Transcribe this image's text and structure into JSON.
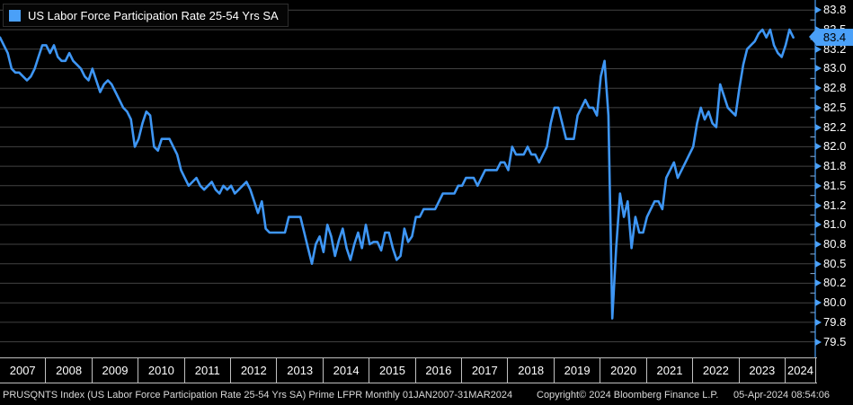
{
  "app": {
    "name": "Bloomberg terminal chart"
  },
  "legend": {
    "label": "US Labor Force Participation Rate 25-54 Yrs SA"
  },
  "footer": {
    "security_text": "PRUSQNTS Index (US Labor Force Participation Rate 25-54 Yrs SA) Prime LFPR  Monthly 01JAN2007-31MAR2024",
    "copyright_text": "Copyright© 2024 Bloomberg Finance L.P.",
    "timestamp_text": "05-Apr-2024 08:54:06"
  },
  "colors": {
    "background": "#000000",
    "accent_blue": "#4aa0f8",
    "line_blue": "#3e96f4",
    "grid": "#424242",
    "minor_tick": "#8fb3d9",
    "axis_white": "#c0c0c0",
    "text_white": "#ffffff",
    "footer_text": "#d9d9d9"
  },
  "chart_data": {
    "type": "line",
    "title": "US Labor Force Participation Rate 25-54 Yrs SA",
    "frequency": "Monthly",
    "x_start": "2007-01",
    "x_end": "2024-03",
    "ylim": [
      79.3,
      83.88
    ],
    "grid": true,
    "legend_position": "top-left",
    "y_ticks": [
      {
        "value": 83.75,
        "label": "83.8"
      },
      {
        "value": 83.5,
        "label": "83.5"
      },
      {
        "value": 83.25,
        "label": "83.2"
      },
      {
        "value": 83.0,
        "label": "83.0"
      },
      {
        "value": 82.75,
        "label": "82.8"
      },
      {
        "value": 82.5,
        "label": "82.5"
      },
      {
        "value": 82.25,
        "label": "82.2"
      },
      {
        "value": 82.0,
        "label": "82.0"
      },
      {
        "value": 81.75,
        "label": "81.8"
      },
      {
        "value": 81.5,
        "label": "81.5"
      },
      {
        "value": 81.25,
        "label": "81.2"
      },
      {
        "value": 81.0,
        "label": "81.0"
      },
      {
        "value": 80.75,
        "label": "80.8"
      },
      {
        "value": 80.5,
        "label": "80.5"
      },
      {
        "value": 80.25,
        "label": "80.2"
      },
      {
        "value": 80.0,
        "label": "80.0"
      },
      {
        "value": 79.75,
        "label": "79.8"
      },
      {
        "value": 79.5,
        "label": "79.5"
      }
    ],
    "years": [
      "2007",
      "2008",
      "2009",
      "2010",
      "2011",
      "2012",
      "2013",
      "2014",
      "2015",
      "2016",
      "2017",
      "2018",
      "2019",
      "2020",
      "2021",
      "2022",
      "2023",
      "2024"
    ],
    "last_value": 83.4,
    "last_value_label": "83.4",
    "series": [
      {
        "name": "US Labor Force Participation Rate 25-54 Yrs SA",
        "values": [
          83.4,
          83.3,
          83.2,
          83.0,
          82.95,
          82.95,
          82.9,
          82.85,
          82.9,
          83.0,
          83.15,
          83.3,
          83.3,
          83.2,
          83.3,
          83.15,
          83.1,
          83.1,
          83.2,
          83.1,
          83.05,
          83.0,
          82.9,
          82.85,
          83.0,
          82.85,
          82.7,
          82.8,
          82.85,
          82.8,
          82.7,
          82.6,
          82.5,
          82.45,
          82.35,
          82.0,
          82.1,
          82.3,
          82.45,
          82.4,
          82.0,
          81.95,
          82.1,
          82.1,
          82.1,
          82.0,
          81.9,
          81.7,
          81.6,
          81.5,
          81.55,
          81.6,
          81.5,
          81.45,
          81.5,
          81.55,
          81.45,
          81.4,
          81.5,
          81.45,
          81.5,
          81.4,
          81.45,
          81.5,
          81.55,
          81.45,
          81.3,
          81.15,
          81.3,
          80.95,
          80.9,
          80.9,
          80.9,
          80.9,
          80.9,
          81.1,
          81.1,
          81.1,
          81.1,
          80.9,
          80.7,
          80.5,
          80.75,
          80.85,
          80.65,
          81.0,
          80.85,
          80.6,
          80.8,
          80.95,
          80.7,
          80.55,
          80.75,
          80.9,
          80.7,
          81.0,
          80.75,
          80.78,
          80.78,
          80.67,
          80.9,
          80.9,
          80.7,
          80.55,
          80.6,
          80.95,
          80.78,
          80.85,
          81.1,
          81.1,
          81.2,
          81.2,
          81.2,
          81.2,
          81.3,
          81.4,
          81.4,
          81.4,
          81.4,
          81.5,
          81.5,
          81.6,
          81.6,
          81.6,
          81.5,
          81.6,
          81.7,
          81.7,
          81.7,
          81.7,
          81.8,
          81.8,
          81.7,
          82.0,
          81.9,
          81.9,
          81.9,
          82.0,
          81.9,
          81.9,
          81.8,
          81.9,
          82.0,
          82.3,
          82.5,
          82.5,
          82.3,
          82.1,
          82.1,
          82.1,
          82.4,
          82.5,
          82.6,
          82.5,
          82.5,
          82.4,
          82.9,
          83.1,
          82.4,
          79.8,
          80.7,
          81.4,
          81.1,
          81.3,
          80.7,
          81.1,
          80.9,
          80.9,
          81.1,
          81.2,
          81.3,
          81.3,
          81.2,
          81.6,
          81.7,
          81.8,
          81.6,
          81.7,
          81.8,
          81.9,
          82.0,
          82.3,
          82.5,
          82.35,
          82.45,
          82.3,
          82.25,
          82.8,
          82.65,
          82.5,
          82.45,
          82.4,
          82.75,
          83.05,
          83.25,
          83.3,
          83.35,
          83.45,
          83.5,
          83.4,
          83.5,
          83.3,
          83.2,
          83.15,
          83.3,
          83.5,
          83.4
        ]
      }
    ]
  }
}
